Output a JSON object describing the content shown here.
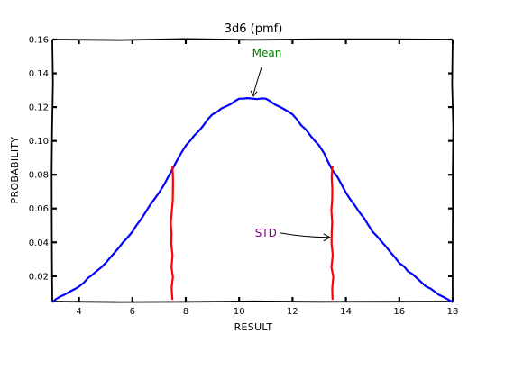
{
  "chart_data": {
    "type": "line",
    "title": "3d6 (pmf)",
    "xlabel": "RESULT",
    "ylabel": "PROBABILITY",
    "xlim": [
      3,
      18
    ],
    "ylim": [
      0.005,
      0.16
    ],
    "x_ticks": [
      4,
      6,
      8,
      10,
      12,
      14,
      16,
      18
    ],
    "x_tick_labels": [
      "4",
      "6",
      "8",
      "10",
      "12",
      "14",
      "16",
      "18"
    ],
    "y_ticks": [
      0.02,
      0.04,
      0.06,
      0.08,
      0.1,
      0.12,
      0.14,
      0.16
    ],
    "y_tick_labels": [
      "0.02",
      "0.04",
      "0.06",
      "0.08",
      "0.10",
      "0.12",
      "0.14",
      "0.16"
    ],
    "grid": false,
    "series": [
      {
        "color": "#0000ff",
        "x": [
          3,
          4,
          5,
          6,
          7,
          8,
          9,
          10,
          11,
          12,
          13,
          14,
          15,
          16,
          17,
          18
        ],
        "values": [
          0.0046,
          0.0139,
          0.0278,
          0.0463,
          0.0694,
          0.0972,
          0.1157,
          0.125,
          0.125,
          0.1157,
          0.0972,
          0.0694,
          0.0463,
          0.0278,
          0.0139,
          0.0046
        ]
      }
    ],
    "std_lines": {
      "color": "#ff0000",
      "x": [
        7.5,
        13.5
      ],
      "y_top": 0.0855
    },
    "annotations": [
      {
        "text": "Mean",
        "color": "#008000",
        "target_x": 10.5,
        "target_y": 0.1255
      },
      {
        "text": "STD",
        "color": "#800080",
        "target_x": 13.5,
        "target_y": 0.044
      }
    ]
  }
}
